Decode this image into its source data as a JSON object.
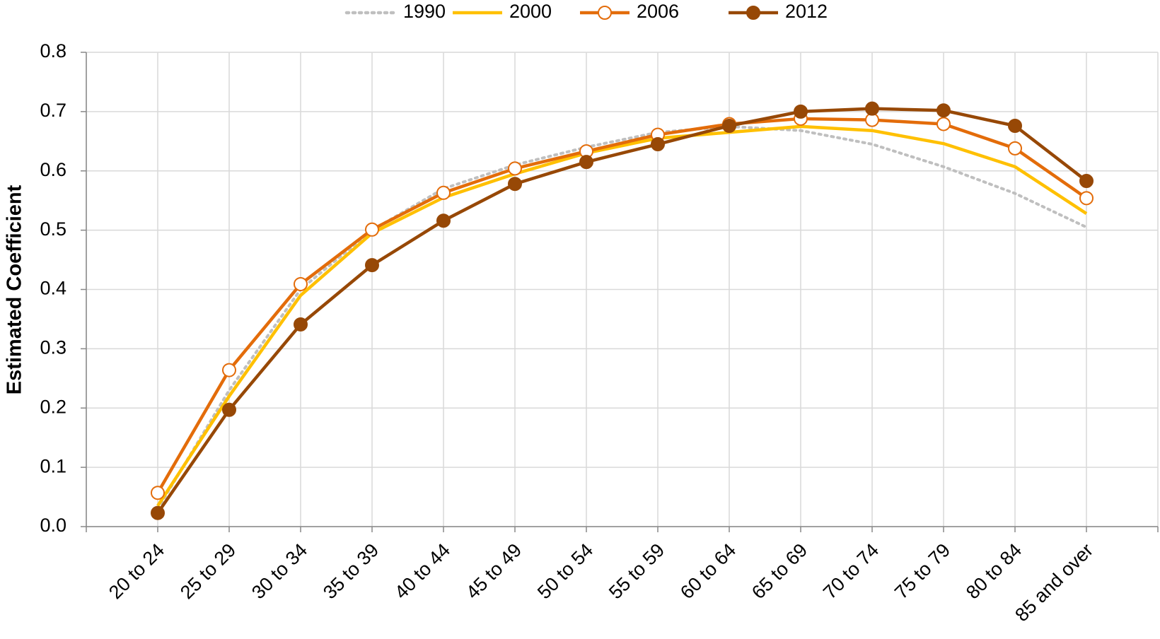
{
  "chart_data": {
    "type": "line",
    "y_label": "Estimated Coefficient",
    "categories": [
      "20 to 24",
      "25 to 29",
      "30 to 34",
      "35 to 39",
      "40 to 44",
      "45 to 49",
      "50 to 54",
      "55 to 59",
      "60 to 64",
      "65 to 69",
      "70 to 74",
      "75 to 79",
      "80 to 84",
      "85 and over"
    ],
    "series": [
      {
        "name": "1990",
        "color": "#bfbfbf",
        "dash": true,
        "marker": "none",
        "values": [
          0.03,
          0.23,
          0.4,
          0.5,
          0.57,
          0.61,
          0.64,
          0.665,
          0.675,
          0.668,
          0.645,
          0.607,
          0.562,
          0.505
        ]
      },
      {
        "name": "2000",
        "color": "#ffc000",
        "dash": false,
        "marker": "none",
        "values": [
          0.035,
          0.22,
          0.39,
          0.495,
          0.555,
          0.595,
          0.63,
          0.655,
          0.665,
          0.675,
          0.668,
          0.646,
          0.607,
          0.528
        ]
      },
      {
        "name": "2006",
        "color": "#e36c0a",
        "dash": false,
        "marker": "open",
        "values": [
          0.057,
          0.264,
          0.409,
          0.501,
          0.563,
          0.604,
          0.633,
          0.661,
          0.679,
          0.688,
          0.686,
          0.679,
          0.638,
          0.554
        ]
      },
      {
        "name": "2012",
        "color": "#974806",
        "dash": false,
        "marker": "filled",
        "values": [
          0.023,
          0.197,
          0.341,
          0.441,
          0.516,
          0.578,
          0.615,
          0.645,
          0.676,
          0.7,
          0.705,
          0.702,
          0.676,
          0.583
        ]
      }
    ],
    "ylim": [
      0,
      0.8
    ],
    "yticks": [
      {
        "value": 0,
        "label": "0.0"
      },
      0.1,
      0.2,
      0.3,
      0.4,
      0.5,
      0.6,
      0.7,
      0.8
    ],
    "grid": true,
    "legend": "top"
  }
}
